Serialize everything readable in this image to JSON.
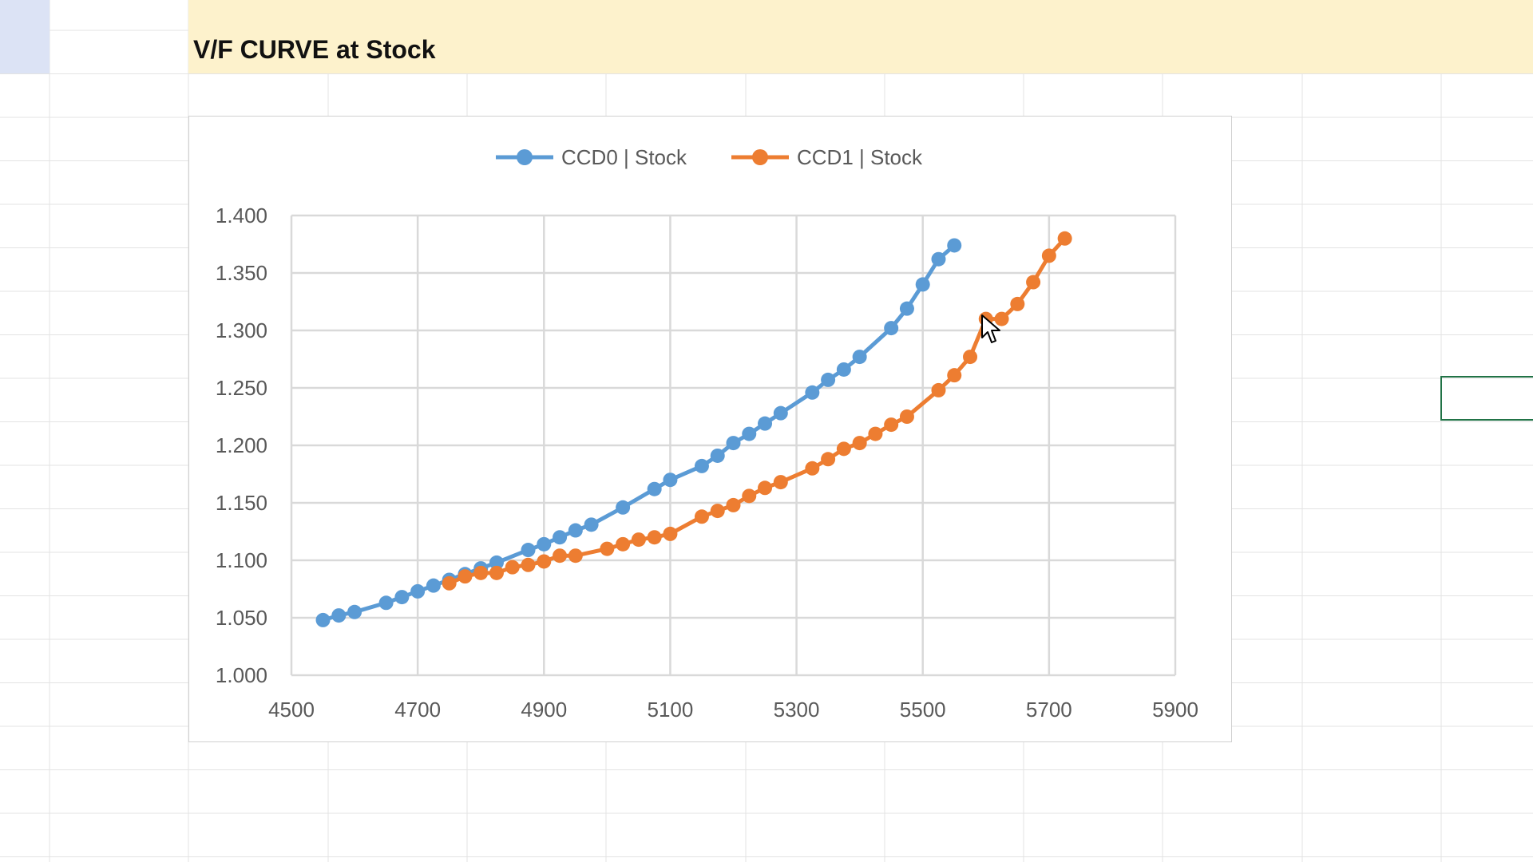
{
  "sheet": {
    "title": "V/F CURVE at Stock"
  },
  "colors": {
    "ccd0": "#5b9bd5",
    "ccd1": "#ed7d31",
    "gridline": "#d9d9d9",
    "title_band": "#fdf2cc",
    "selection": "#217346"
  },
  "chart_data": {
    "type": "line",
    "title": "",
    "xlabel": "",
    "ylabel": "",
    "xlim": [
      4500,
      5900
    ],
    "ylim": [
      1.0,
      1.4
    ],
    "x_ticks": [
      "4500",
      "4700",
      "4900",
      "5100",
      "5300",
      "5500",
      "5700",
      "5900"
    ],
    "y_ticks": [
      "1.000",
      "1.050",
      "1.100",
      "1.150",
      "1.200",
      "1.250",
      "1.300",
      "1.350",
      "1.400"
    ],
    "grid": true,
    "legend_position": "top",
    "series": [
      {
        "name": "CCD0 | Stock",
        "color": "#5b9bd5",
        "x": [
          4550,
          4575,
          4600,
          4650,
          4675,
          4700,
          4725,
          4750,
          4775,
          4800,
          4825,
          4875,
          4900,
          4925,
          4950,
          4975,
          5025,
          5075,
          5100,
          5150,
          5175,
          5200,
          5225,
          5250,
          5275,
          5325,
          5350,
          5375,
          5400,
          5450,
          5475,
          5500,
          5525,
          5550
        ],
        "y": [
          1.048,
          1.052,
          1.055,
          1.063,
          1.068,
          1.073,
          1.078,
          1.083,
          1.088,
          1.093,
          1.098,
          1.109,
          1.114,
          1.12,
          1.126,
          1.131,
          1.146,
          1.162,
          1.17,
          1.182,
          1.191,
          1.202,
          1.21,
          1.219,
          1.228,
          1.246,
          1.257,
          1.266,
          1.277,
          1.302,
          1.319,
          1.34,
          1.362,
          1.374
        ]
      },
      {
        "name": "CCD1 | Stock",
        "color": "#ed7d31",
        "x": [
          4750,
          4775,
          4800,
          4825,
          4850,
          4875,
          4900,
          4925,
          4950,
          5000,
          5025,
          5050,
          5075,
          5100,
          5150,
          5175,
          5200,
          5225,
          5250,
          5275,
          5325,
          5350,
          5375,
          5400,
          5425,
          5450,
          5475,
          5525,
          5550,
          5575,
          5600,
          5625,
          5650,
          5675,
          5700,
          5725
        ],
        "y": [
          1.08,
          1.086,
          1.089,
          1.089,
          1.094,
          1.096,
          1.099,
          1.104,
          1.104,
          1.11,
          1.114,
          1.118,
          1.12,
          1.123,
          1.138,
          1.143,
          1.148,
          1.156,
          1.163,
          1.168,
          1.18,
          1.188,
          1.197,
          1.202,
          1.21,
          1.218,
          1.225,
          1.248,
          1.261,
          1.277,
          1.31,
          1.31,
          1.323,
          1.342,
          1.365,
          1.38
        ]
      }
    ]
  }
}
